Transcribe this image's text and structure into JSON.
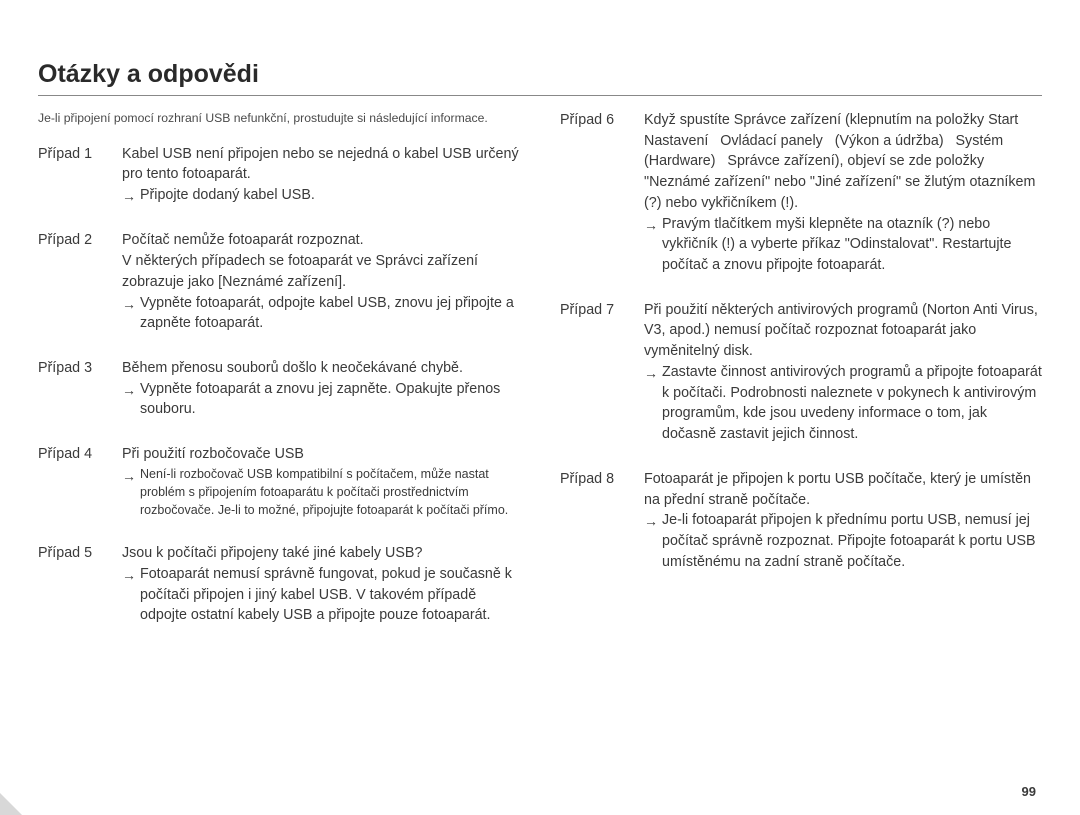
{
  "title": "Otázky a odpovědi",
  "intro": "Je-li připojení pomocí rozhraní USB nefunkční, prostudujte si následující informace.",
  "page_number": "99",
  "left_cases": [
    {
      "label": "Případ 1",
      "desc": "Kabel USB není připojen nebo se nejedná o kabel USB určený pro tento fotoaparát.",
      "solution": "Připojte dodaný kabel USB."
    },
    {
      "label": "Případ 2",
      "desc": "Počítač nemůže fotoaparát rozpoznat.\nV některých případech se fotoaparát ve Správci zařízení zobrazuje jako [Neznámé zařízení].",
      "solution": "Vypněte fotoaparát, odpojte kabel USB, znovu jej připojte a zapněte fotoaparát."
    },
    {
      "label": "Případ 3",
      "desc": "Během přenosu souborů došlo k neočekávané chybě.",
      "solution": "Vypněte fotoaparát a znovu jej zapněte. Opakujte přenos souboru."
    },
    {
      "label": "Případ 4",
      "desc": "Při použití rozbočovače USB",
      "solution_small": "Není-li rozbočovač USB kompatibilní s počítačem, může nastat problém s připojením fotoaparátu k počítači prostřednictvím rozbočovače. Je-li to možné, připojujte fotoaparát k počítači přímo."
    },
    {
      "label": "Případ 5",
      "desc": "Jsou k počítači připojeny také jiné kabely USB?",
      "solution": "Fotoaparát nemusí správně fungovat, pokud je současně k počítači připojen i jiný kabel USB. V takovém případě odpojte ostatní kabely USB a připojte pouze fotoaparát."
    }
  ],
  "right_cases": [
    {
      "label": "Případ 6",
      "desc": "Když spustíte Správce zařízení (klepnutím na položky Start   Nastavení   Ovládací panely   (Výkon a údržba)   Systém   (Hardware)   Správce zařízení), objeví se zde položky \"Neznámé zařízení\" nebo \"Jiné zařízení\" se žlutým otazníkem (?) nebo vykřičníkem (!).",
      "solution": "Pravým tlačítkem myši klepněte na otazník (?) nebo vykřičník (!) a vyberte příkaz \"Odinstalovat\". Restartujte počítač a znovu připojte fotoaparát."
    },
    {
      "label": "Případ 7",
      "desc": "Při použití některých antivirových programů (Norton Anti Virus, V3, apod.) nemusí počítač rozpoznat fotoaparát jako vyměnitelný disk.",
      "solution": "Zastavte činnost antivirových programů a připojte fotoaparát k počítači. Podrobnosti naleznete v pokynech k antivirovým programům, kde jsou uvedeny informace o tom, jak dočasně zastavit jejich činnost."
    },
    {
      "label": "Případ 8",
      "desc": "Fotoaparát je připojen k portu USB počítače, který je umístěn na přední straně počítače.",
      "solution": "Je-li fotoaparát připojen k přednímu portu USB, nemusí jej počítač správně rozpoznat. Připojte fotoaparát k portu USB umístěnému na zadní straně počítače."
    }
  ]
}
